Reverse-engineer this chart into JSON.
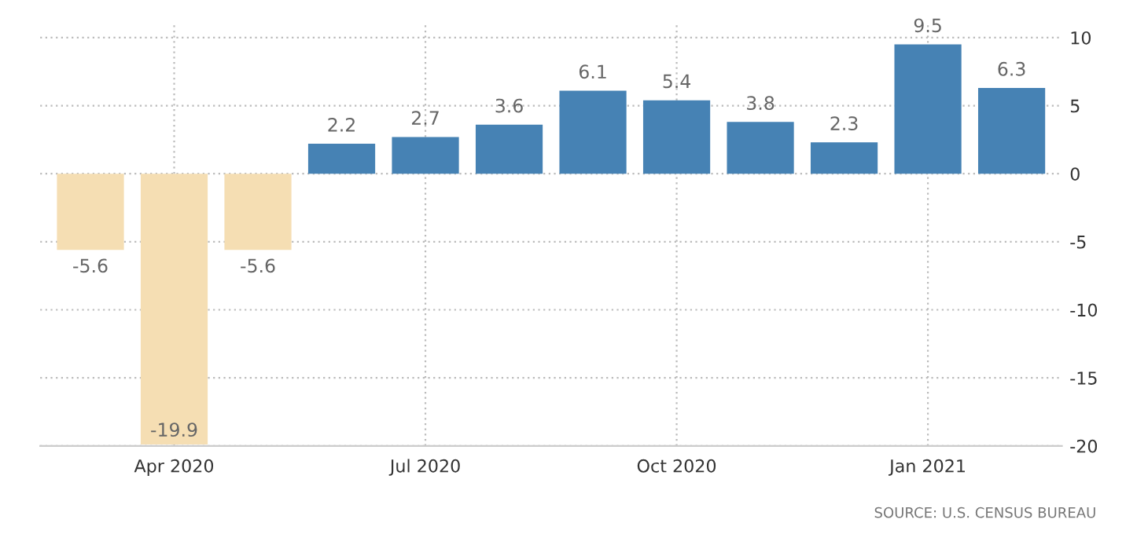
{
  "chart_data": {
    "type": "bar",
    "categories": [
      null,
      "Apr 2020",
      null,
      null,
      "Jul 2020",
      null,
      null,
      "Oct 2020",
      null,
      null,
      "Jan 2021",
      null
    ],
    "values": [
      -5.6,
      -19.9,
      -5.6,
      2.2,
      2.7,
      3.6,
      6.1,
      5.4,
      3.8,
      2.3,
      9.5,
      6.3
    ],
    "colors": [
      "#f5deb3",
      "#f5deb3",
      "#f5deb3",
      "#4682b4",
      "#4682b4",
      "#4682b4",
      "#4682b4",
      "#4682b4",
      "#4682b4",
      "#4682b4",
      "#4682b4",
      "#4682b4"
    ],
    "ylim": [
      -20,
      11
    ],
    "yticks": [
      -20,
      -15,
      -10,
      -5,
      0,
      5,
      10
    ],
    "grid": true,
    "data_labels": true,
    "annotations": [
      "SOURCE: U.S. CENSUS BUREAU"
    ]
  }
}
